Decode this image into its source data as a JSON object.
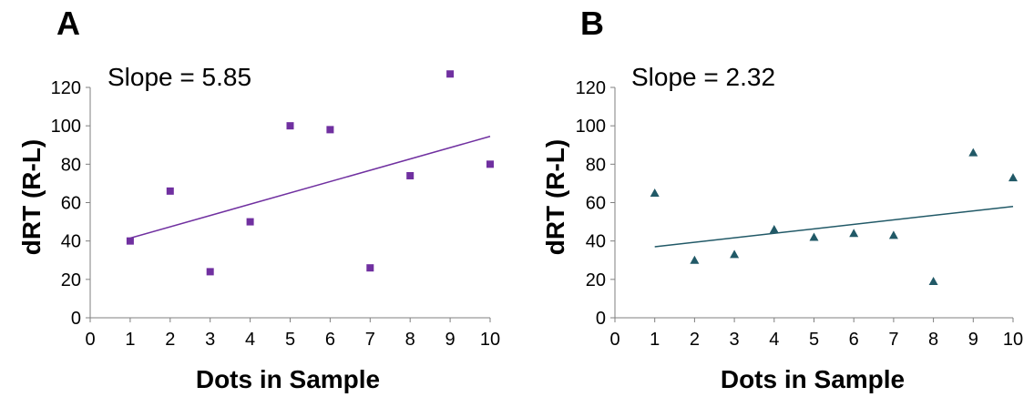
{
  "chart_data": [
    {
      "type": "scatter",
      "panel_label": "A",
      "annotation": "Slope = 5.85",
      "xlabel": "Dots in Sample",
      "ylabel": "dRT (R-L)",
      "xlim": [
        0,
        10
      ],
      "ylim": [
        0,
        120
      ],
      "xticks": [
        "0",
        "1",
        "2",
        "3",
        "4",
        "5",
        "6",
        "7",
        "8",
        "9",
        "10"
      ],
      "yticks": [
        "0",
        "20",
        "40",
        "60",
        "80",
        "100",
        "120"
      ],
      "grid": false,
      "marker": "square",
      "color": "#7030a0",
      "series": [
        {
          "x": [
            1,
            2,
            3,
            4,
            5,
            6,
            7,
            8,
            9,
            10
          ],
          "y": [
            40,
            66,
            24,
            50,
            100,
            98,
            26,
            74,
            127,
            80
          ]
        }
      ],
      "trendline": {
        "x": [
          1,
          10
        ],
        "y": [
          41.5,
          94.5
        ]
      }
    },
    {
      "type": "scatter",
      "panel_label": "B",
      "annotation": "Slope = 2.32",
      "xlabel": "Dots in Sample",
      "ylabel": "dRT (R-L)",
      "xlim": [
        0,
        10
      ],
      "ylim": [
        0,
        120
      ],
      "xticks": [
        "0",
        "1",
        "2",
        "3",
        "4",
        "5",
        "6",
        "7",
        "8",
        "9",
        "10"
      ],
      "yticks": [
        "0",
        "20",
        "40",
        "60",
        "80",
        "100",
        "120"
      ],
      "grid": false,
      "marker": "triangle",
      "color": "#215967",
      "series": [
        {
          "x": [
            1,
            2,
            3,
            4,
            5,
            6,
            7,
            8,
            9,
            10
          ],
          "y": [
            65,
            30,
            33,
            46,
            42,
            44,
            43,
            19,
            86,
            73
          ]
        }
      ],
      "trendline": {
        "x": [
          1,
          10
        ],
        "y": [
          37,
          58
        ]
      }
    }
  ]
}
